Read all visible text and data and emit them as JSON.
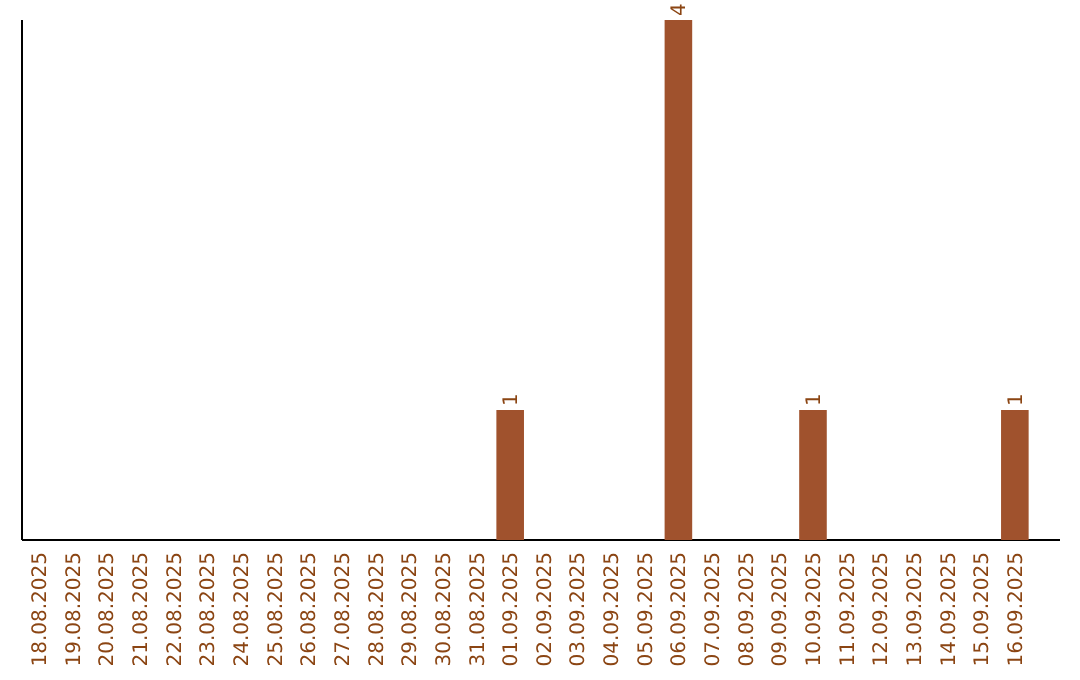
{
  "chart_data": {
    "type": "bar",
    "categories": [
      "18.08.2025",
      "19.08.2025",
      "20.08.2025",
      "21.08.2025",
      "22.08.2025",
      "23.08.2025",
      "24.08.2025",
      "25.08.2025",
      "26.08.2025",
      "27.08.2025",
      "28.08.2025",
      "29.08.2025",
      "30.08.2025",
      "31.08.2025",
      "01.09.2025",
      "02.09.2025",
      "03.09.2025",
      "04.09.2025",
      "05.09.2025",
      "06.09.2025",
      "07.09.2025",
      "08.09.2025",
      "09.09.2025",
      "10.09.2025",
      "11.09.2025",
      "12.09.2025",
      "13.09.2025",
      "14.09.2025",
      "15.09.2025",
      "16.09.2025"
    ],
    "values": [
      null,
      null,
      null,
      null,
      null,
      null,
      null,
      null,
      null,
      null,
      null,
      null,
      null,
      null,
      1,
      null,
      null,
      null,
      null,
      4,
      null,
      null,
      null,
      1,
      null,
      null,
      null,
      null,
      null,
      1
    ],
    "data_labels": true,
    "color": "#a0522d",
    "tick_labels": "x"
  }
}
